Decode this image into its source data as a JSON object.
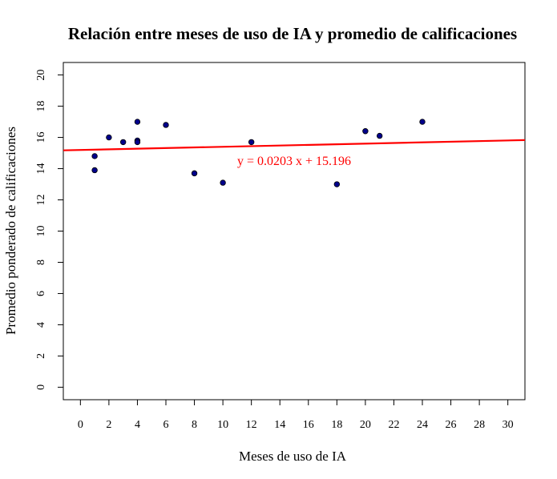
{
  "chart_data": {
    "type": "scatter",
    "title": "Relación entre meses de uso de IA y promedio de calificaciones",
    "xlabel": "Meses de uso de IA",
    "ylabel": "Promedio ponderado de calificaciones",
    "xlim": [
      -1.2,
      31.2
    ],
    "ylim": [
      -0.8,
      20.8
    ],
    "xticks": [
      0,
      2,
      4,
      6,
      8,
      10,
      12,
      14,
      16,
      18,
      20,
      22,
      24,
      26,
      28,
      30
    ],
    "yticks": [
      0,
      2,
      4,
      6,
      8,
      10,
      12,
      14,
      16,
      18,
      20
    ],
    "grid": false,
    "series": [
      {
        "points": [
          {
            "x": 1,
            "y": 14.8
          },
          {
            "x": 1,
            "y": 13.9
          },
          {
            "x": 2,
            "y": 16.0
          },
          {
            "x": 3,
            "y": 15.7
          },
          {
            "x": 4,
            "y": 17.0
          },
          {
            "x": 4,
            "y": 15.8
          },
          {
            "x": 4,
            "y": 15.7
          },
          {
            "x": 6,
            "y": 16.8
          },
          {
            "x": 8,
            "y": 13.7
          },
          {
            "x": 10,
            "y": 13.1
          },
          {
            "x": 12,
            "y": 15.7
          },
          {
            "x": 18,
            "y": 13.0
          },
          {
            "x": 20,
            "y": 16.4
          },
          {
            "x": 21,
            "y": 16.1
          },
          {
            "x": 24,
            "y": 17.0
          }
        ],
        "color": "#00008b"
      }
    ],
    "trendline": {
      "slope": 0.0203,
      "intercept": 15.196,
      "label": "y = 0.0203 x + 15.196",
      "label_at": {
        "x": 15,
        "y": 14.5
      },
      "color": "#ff0000"
    }
  }
}
